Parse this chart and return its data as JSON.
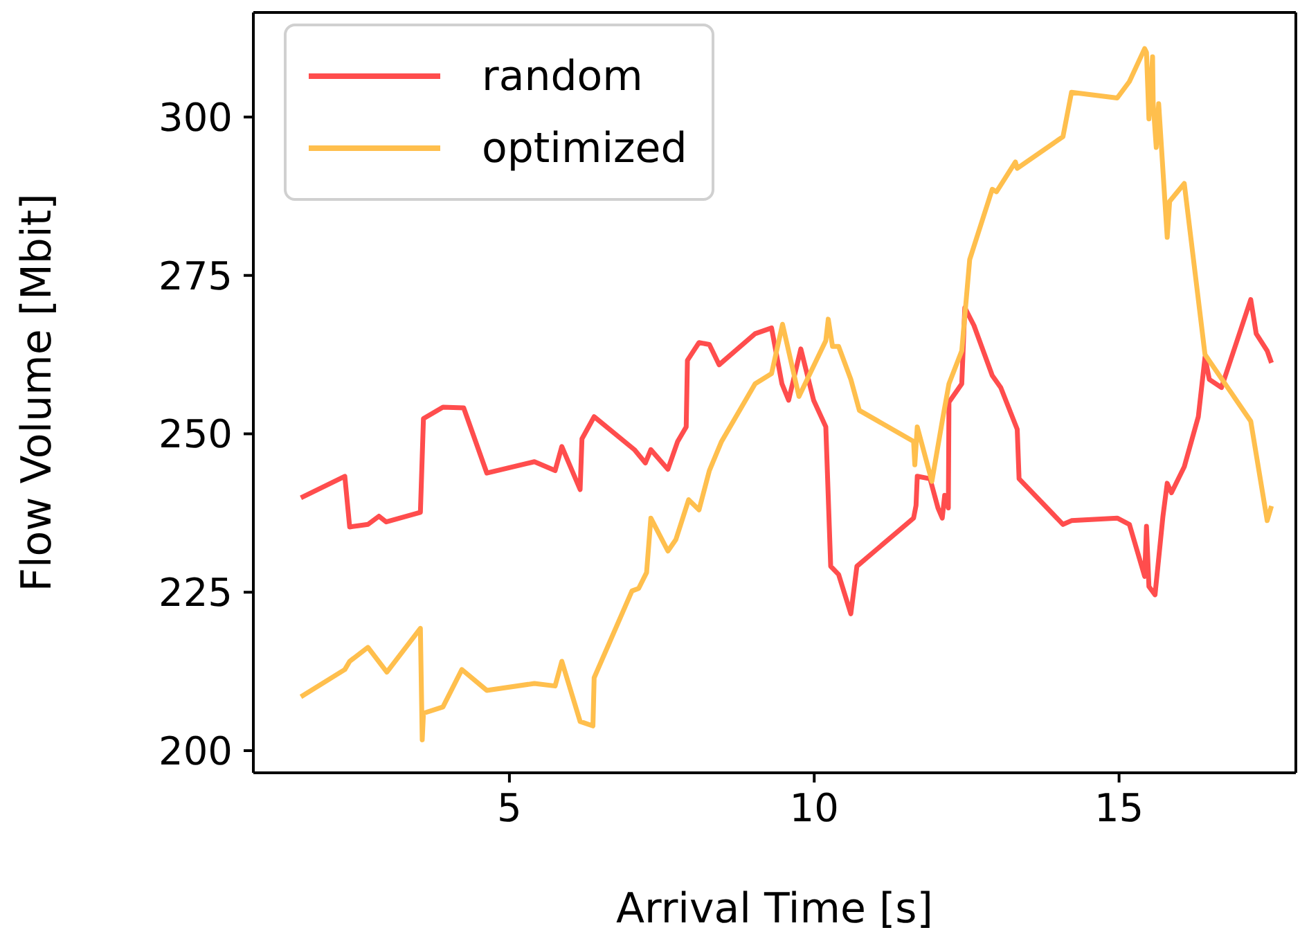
{
  "chart_data": {
    "type": "line",
    "xlabel": "Arrival Time [s]",
    "ylabel": "Flow Volume [Mbit]",
    "xlim": [
      0.8,
      17.9
    ],
    "ylim": [
      196.5,
      316.5
    ],
    "xticks": [
      5,
      10,
      15
    ],
    "yticks": [
      200,
      225,
      250,
      275,
      300
    ],
    "grid": false,
    "legend": "top left",
    "marker": "none",
    "line_style": "solid",
    "series": [
      {
        "name": "random",
        "color": "#ff4d4d",
        "x": [
          1.58,
          2.3,
          2.38,
          2.68,
          2.86,
          2.98,
          3.54,
          3.59,
          3.91,
          4.25,
          4.63,
          5.41,
          5.75,
          5.86,
          6.16,
          6.19,
          6.39,
          7.05,
          7.23,
          7.32,
          7.6,
          7.76,
          7.9,
          7.92,
          8.11,
          8.28,
          8.44,
          9.03,
          9.3,
          9.47,
          9.58,
          9.78,
          9.99,
          10.19,
          10.27,
          10.4,
          10.6,
          10.7,
          11.63,
          11.67,
          11.69,
          11.9,
          12.03,
          12.1,
          12.14,
          12.2,
          12.21,
          12.42,
          12.47,
          12.62,
          12.92,
          13.06,
          13.33,
          13.36,
          14.08,
          14.22,
          14.97,
          15.17,
          15.42,
          15.45,
          15.49,
          15.59,
          15.72,
          15.79,
          15.86,
          16.07,
          16.3,
          16.41,
          16.48,
          16.68,
          17.16,
          17.25,
          17.43,
          17.5
        ],
        "values": [
          239.9,
          243.3,
          235.3,
          235.7,
          237,
          236.1,
          237.6,
          252.4,
          254.2,
          254.1,
          243.8,
          245.6,
          244.2,
          248,
          241.2,
          249.2,
          252.7,
          247.5,
          245.4,
          247.5,
          244.4,
          248.8,
          251.1,
          261.6,
          264.4,
          264.1,
          260.9,
          265.8,
          266.7,
          257.9,
          255.3,
          263.4,
          255.3,
          251.1,
          229.1,
          227.8,
          221.6,
          229.1,
          236.7,
          238.7,
          243.3,
          242.9,
          238.3,
          236.7,
          240.3,
          238.3,
          255,
          257.9,
          269.9,
          267.1,
          259.2,
          257.3,
          250.7,
          242.9,
          235.7,
          236.3,
          236.7,
          235.7,
          227.5,
          235.4,
          225.9,
          224.6,
          237,
          242.2,
          240.7,
          244.8,
          252.7,
          262.1,
          258.6,
          257.3,
          271.2,
          265.8,
          263.1,
          261.2
        ]
      },
      {
        "name": "optimized",
        "color": "#ffbf4d",
        "x": [
          1.58,
          2.3,
          2.38,
          2.68,
          2.99,
          3.54,
          3.57,
          3.59,
          3.91,
          4.22,
          4.63,
          5.41,
          5.75,
          5.86,
          6.16,
          6.37,
          6.39,
          7.01,
          7.12,
          7.25,
          7.32,
          7.6,
          7.73,
          7.94,
          8.11,
          8.28,
          8.48,
          9.03,
          9.3,
          9.48,
          9.75,
          10.19,
          10.23,
          10.3,
          10.4,
          10.6,
          10.74,
          11.63,
          11.65,
          11.69,
          11.93,
          12.1,
          12.21,
          12.42,
          12.55,
          12.92,
          12.99,
          13.3,
          13.33,
          14.08,
          14.22,
          14.97,
          15.17,
          15.42,
          15.45,
          15.49,
          15.55,
          15.56,
          15.61,
          15.65,
          15.79,
          15.83,
          16.07,
          16.41,
          17.16,
          17.43,
          17.5
        ],
        "values": [
          208.5,
          212.8,
          214.1,
          216.3,
          212.4,
          219.3,
          201.7,
          205.9,
          206.9,
          212.8,
          209.5,
          210.6,
          210.2,
          214.1,
          204.6,
          203.9,
          211.5,
          225.2,
          225.6,
          228.1,
          236.7,
          231.5,
          233.3,
          239.6,
          238,
          244.2,
          248.8,
          257.9,
          259.5,
          267.3,
          255.9,
          264.7,
          268.1,
          263.8,
          263.8,
          258.6,
          253.7,
          248.8,
          245.1,
          251.1,
          242.5,
          252,
          257.9,
          263.1,
          277.5,
          288.6,
          288.2,
          292.9,
          291.9,
          296.9,
          303.9,
          303,
          305.6,
          310.8,
          310.2,
          299.7,
          309.5,
          302.1,
          295.2,
          302.1,
          281,
          286.7,
          289.5,
          262.5,
          252,
          236.3,
          238.6
        ]
      }
    ]
  }
}
